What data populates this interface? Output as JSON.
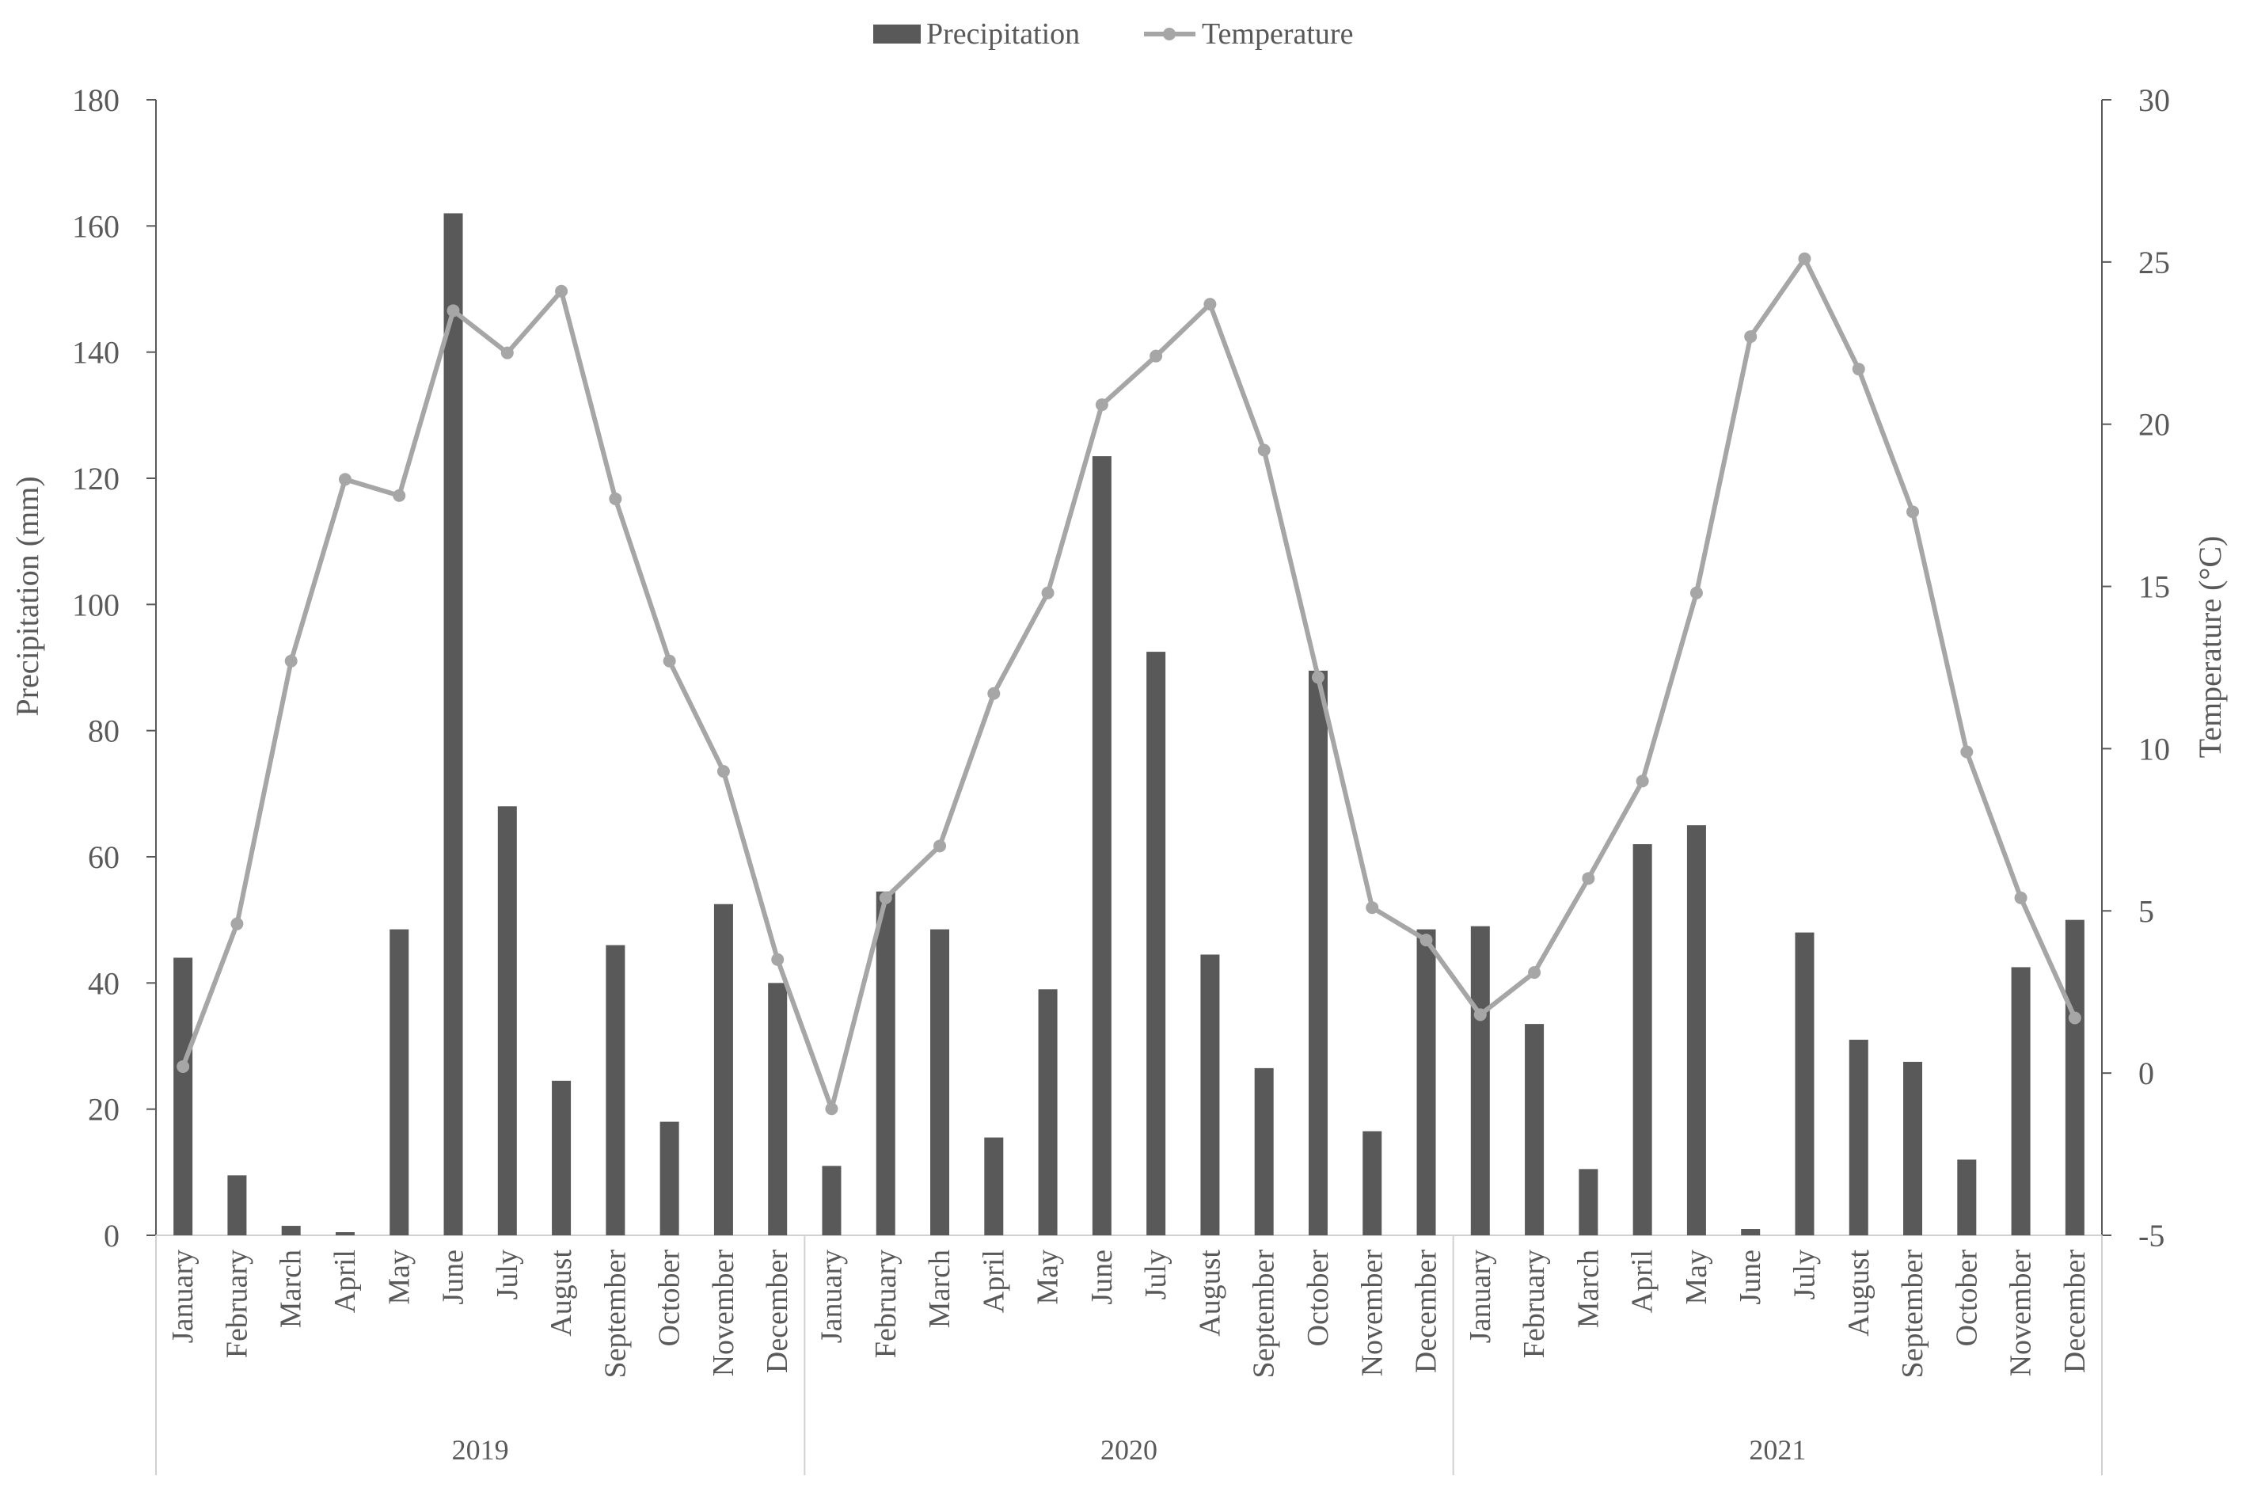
{
  "chart_data": {
    "type": "bar",
    "title": "",
    "legend": {
      "placement": "top-center",
      "items": [
        {
          "label": "Precipitation",
          "kind": "bar",
          "color": "#595959"
        },
        {
          "label": "Temperature",
          "kind": "line",
          "color": "#a6a6a6"
        }
      ]
    },
    "ylabel_left": "Precipitation (mm)",
    "ylabel_right": "Temperature (°C)",
    "ylim_left": [
      0,
      180
    ],
    "ylim_right": [
      -5,
      30
    ],
    "yticks_left": [
      "0",
      "20",
      "40",
      "60",
      "80",
      "100",
      "120",
      "140",
      "160",
      "180"
    ],
    "yticks_right": [
      "-5",
      "0",
      "5",
      "10",
      "15",
      "20",
      "25",
      "30"
    ],
    "grid": false,
    "groups": [
      {
        "label": "2019",
        "categories": [
          "January",
          "February",
          "March",
          "April",
          "May",
          "June",
          "July",
          "August",
          "September",
          "October",
          "November",
          "December"
        ]
      },
      {
        "label": "2020",
        "categories": [
          "January",
          "February",
          "March",
          "April",
          "May",
          "June",
          "July",
          "August",
          "September",
          "October",
          "November",
          "December"
        ]
      },
      {
        "label": "2021",
        "categories": [
          "January",
          "February",
          "March",
          "April",
          "May",
          "June",
          "July",
          "August",
          "September",
          "October",
          "November",
          "December"
        ]
      }
    ],
    "series": [
      {
        "name": "Precipitation",
        "type": "bar",
        "axis": "left",
        "color": "#595959",
        "values": [
          44,
          9.5,
          1.5,
          0.5,
          48.5,
          162,
          68,
          24.5,
          46,
          18,
          52.5,
          40,
          11,
          54.5,
          48.5,
          15.5,
          39,
          123.5,
          92.5,
          44.5,
          26.5,
          89.5,
          16.5,
          48.5,
          49,
          33.5,
          10.5,
          62,
          65,
          1,
          48,
          31,
          27.5,
          12,
          42.5,
          50
        ]
      },
      {
        "name": "Temperature",
        "type": "line",
        "axis": "right",
        "color": "#a6a6a6",
        "values": [
          0.2,
          4.6,
          12.7,
          18.3,
          17.8,
          23.5,
          22.2,
          24.1,
          17.7,
          12.7,
          9.3,
          3.5,
          -1.1,
          5.4,
          7.0,
          11.7,
          14.8,
          20.6,
          22.1,
          23.7,
          19.2,
          12.2,
          5.1,
          4.1,
          1.8,
          3.1,
          6.0,
          9.0,
          14.8,
          22.7,
          25.1,
          21.7,
          17.3,
          9.9,
          5.4,
          1.7
        ]
      }
    ]
  }
}
